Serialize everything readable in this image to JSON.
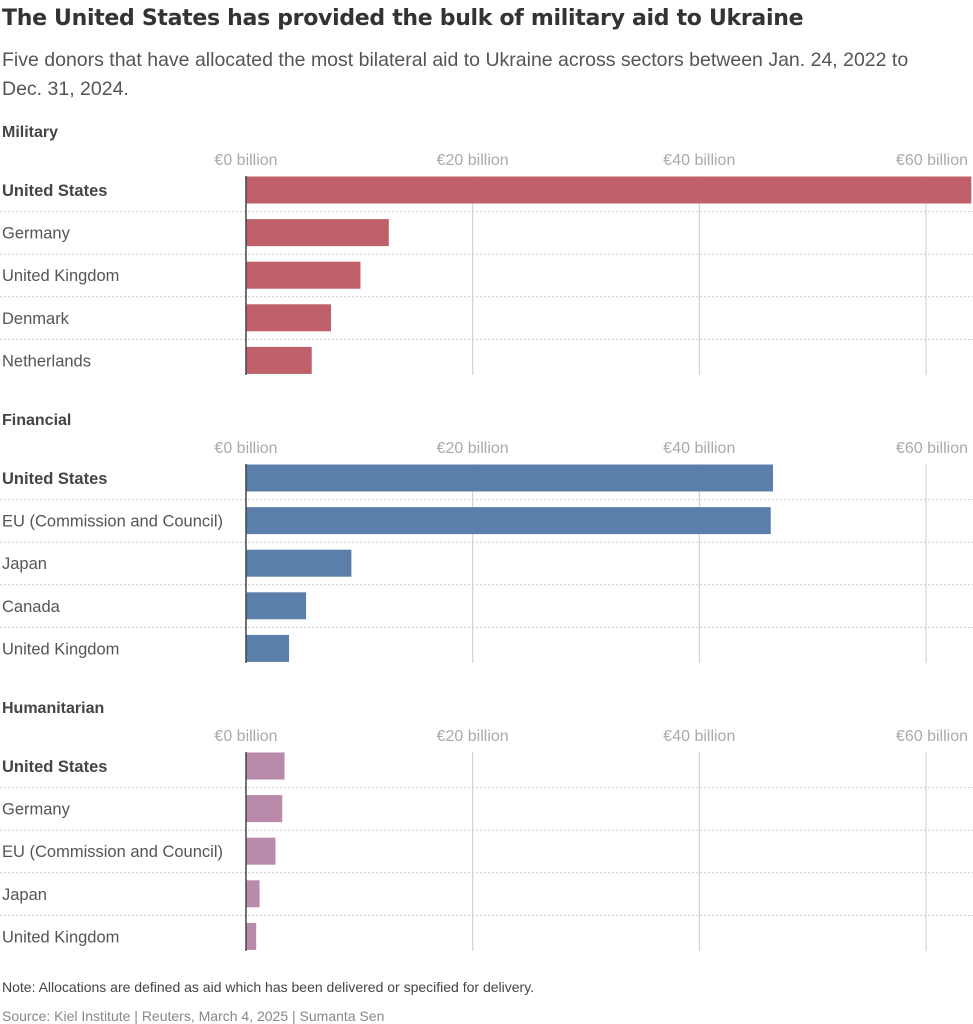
{
  "title": "The United States has provided the bulk of military aid to Ukraine",
  "subtitle": "Five donors that have allocated the most bilateral aid to Ukraine across sectors between Jan. 24, 2022 to Dec. 31, 2024.",
  "note": "Note: Allocations are defined as aid which has been delivered or specified for delivery.",
  "source": "Source: Kiel Institute | Reuters, March 4, 2025 | Sumanta Sen",
  "chart_data": [
    {
      "type": "bar",
      "orientation": "horizontal",
      "title": "Military",
      "color": "#c0606a",
      "xlim": [
        0,
        64
      ],
      "ticks": [
        0,
        20,
        40,
        60
      ],
      "tick_labels": [
        "€0 billion",
        "€20 billion",
        "€40 billion",
        "€60 billion"
      ],
      "grid": true,
      "categories": [
        "United States",
        "Germany",
        "United Kingdom",
        "Denmark",
        "Netherlands"
      ],
      "values": [
        64.1,
        12.6,
        10.1,
        7.5,
        5.8
      ]
    },
    {
      "type": "bar",
      "orientation": "horizontal",
      "title": "Financial",
      "color": "#5b7fab",
      "xlim": [
        0,
        64
      ],
      "ticks": [
        0,
        20,
        40,
        60
      ],
      "tick_labels": [
        "€0 billion",
        "€20 billion",
        "€40 billion",
        "€60 billion"
      ],
      "grid": true,
      "categories": [
        "United States",
        "EU (Commission and Council)",
        "Japan",
        "Canada",
        "United Kingdom"
      ],
      "values": [
        46.5,
        46.3,
        9.3,
        5.3,
        3.8
      ]
    },
    {
      "type": "bar",
      "orientation": "horizontal",
      "title": "Humanitarian",
      "color": "#b98aaa",
      "xlim": [
        0,
        64
      ],
      "ticks": [
        0,
        20,
        40,
        60
      ],
      "tick_labels": [
        "€0 billion",
        "€20 billion",
        "€40 billion",
        "€60 billion"
      ],
      "grid": true,
      "categories": [
        "United States",
        "Germany",
        "EU (Commission and Council)",
        "Japan",
        "United Kingdom"
      ],
      "values": [
        3.4,
        3.2,
        2.6,
        1.2,
        0.9
      ]
    }
  ]
}
